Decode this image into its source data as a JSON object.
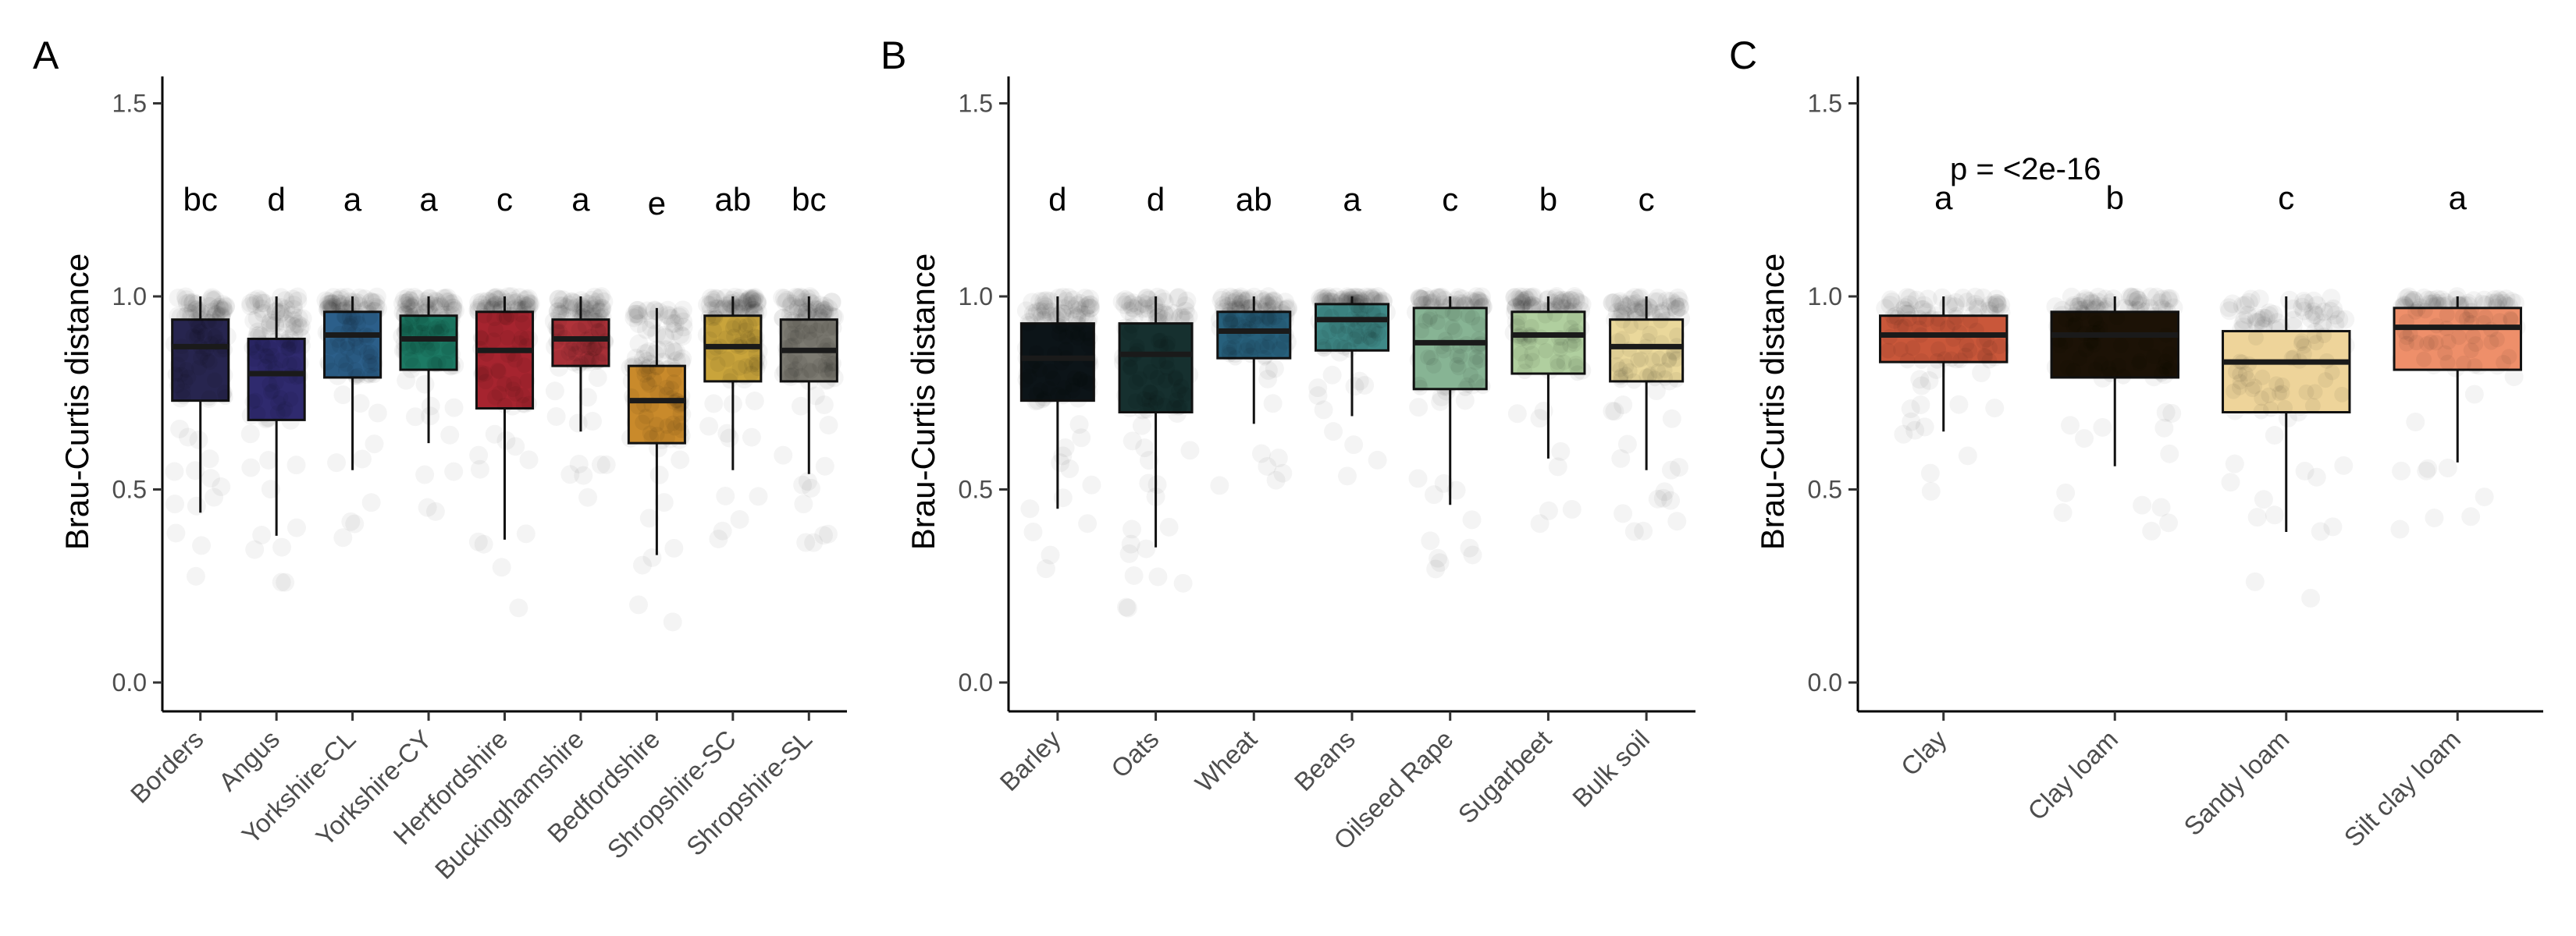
{
  "chart_data": [
    {
      "panel": "A",
      "type": "box",
      "ylabel": "Brau-Curtis distance",
      "ylim": [
        -0.05,
        1.6
      ],
      "yticks": [
        "0.0",
        "0.5",
        "1.0",
        "1.5"
      ],
      "grid": false,
      "categories": [
        "Borders",
        "Angus",
        "Yorkshire-CL",
        "Yorkshire-CY",
        "Hertfordshire",
        "Buckinghamshire",
        "Bedfordshire",
        "Shropshire-SC",
        "Shropshire-SL"
      ],
      "boxes": [
        {
          "min": 0.44,
          "q1": 0.73,
          "median": 0.87,
          "q3": 0.94,
          "max": 1.0,
          "color": "#27254f"
        },
        {
          "min": 0.38,
          "q1": 0.68,
          "median": 0.8,
          "q3": 0.89,
          "max": 1.0,
          "color": "#2f2a6e"
        },
        {
          "min": 0.55,
          "q1": 0.79,
          "median": 0.9,
          "q3": 0.96,
          "max": 1.0,
          "color": "#2c5f8a"
        },
        {
          "min": 0.62,
          "q1": 0.81,
          "median": 0.89,
          "q3": 0.95,
          "max": 1.0,
          "color": "#1c7a64"
        },
        {
          "min": 0.37,
          "q1": 0.71,
          "median": 0.86,
          "q3": 0.96,
          "max": 1.0,
          "color": "#a6242f"
        },
        {
          "min": 0.65,
          "q1": 0.82,
          "median": 0.89,
          "q3": 0.94,
          "max": 1.0,
          "color": "#b0333a"
        },
        {
          "min": 0.33,
          "q1": 0.62,
          "median": 0.73,
          "q3": 0.82,
          "max": 0.97,
          "color": "#c98a2b"
        },
        {
          "min": 0.55,
          "q1": 0.78,
          "median": 0.87,
          "q3": 0.95,
          "max": 1.0,
          "color": "#c9a43b"
        },
        {
          "min": 0.54,
          "q1": 0.78,
          "median": 0.86,
          "q3": 0.94,
          "max": 1.0,
          "color": "#7d7b72"
        }
      ],
      "letters": [
        "bc",
        "d",
        "a",
        "a",
        "c",
        "a",
        "e",
        "ab",
        "bc"
      ],
      "pvalue": ""
    },
    {
      "panel": "B",
      "type": "box",
      "ylabel": "Brau-Curtis distance",
      "ylim": [
        -0.05,
        1.6
      ],
      "yticks": [
        "0.0",
        "0.5",
        "1.0",
        "1.5"
      ],
      "grid": false,
      "categories": [
        "Barley",
        "Oats",
        "Wheat",
        "Beans",
        "Oilseed Rape",
        "Sugarbeet",
        "Bulk soil"
      ],
      "boxes": [
        {
          "min": 0.45,
          "q1": 0.73,
          "median": 0.84,
          "q3": 0.93,
          "max": 1.0,
          "color": "#0c1418"
        },
        {
          "min": 0.35,
          "q1": 0.7,
          "median": 0.85,
          "q3": 0.93,
          "max": 1.0,
          "color": "#16302f"
        },
        {
          "min": 0.67,
          "q1": 0.84,
          "median": 0.91,
          "q3": 0.96,
          "max": 1.0,
          "color": "#27607c"
        },
        {
          "min": 0.69,
          "q1": 0.86,
          "median": 0.94,
          "q3": 0.98,
          "max": 1.0,
          "color": "#3f8987"
        },
        {
          "min": 0.46,
          "q1": 0.76,
          "median": 0.88,
          "q3": 0.97,
          "max": 1.0,
          "color": "#87b494"
        },
        {
          "min": 0.58,
          "q1": 0.8,
          "median": 0.9,
          "q3": 0.96,
          "max": 1.0,
          "color": "#b0cf9f"
        },
        {
          "min": 0.55,
          "q1": 0.78,
          "median": 0.87,
          "q3": 0.94,
          "max": 1.0,
          "color": "#ead89b"
        }
      ],
      "letters": [
        "d",
        "d",
        "ab",
        "a",
        "c",
        "b",
        "c"
      ],
      "pvalue": ""
    },
    {
      "panel": "C",
      "type": "box",
      "ylabel": "Brau-Curtis distance",
      "ylim": [
        -0.05,
        1.6
      ],
      "yticks": [
        "0.0",
        "0.5",
        "1.0",
        "1.5"
      ],
      "grid": false,
      "categories": [
        "Clay",
        "Clay loam",
        "Sandy loam",
        "Silt clay loam"
      ],
      "boxes": [
        {
          "min": 0.65,
          "q1": 0.83,
          "median": 0.9,
          "q3": 0.95,
          "max": 1.0,
          "color": "#c9573a"
        },
        {
          "min": 0.56,
          "q1": 0.79,
          "median": 0.9,
          "q3": 0.96,
          "max": 1.0,
          "color": "#1c1206"
        },
        {
          "min": 0.39,
          "q1": 0.7,
          "median": 0.83,
          "q3": 0.91,
          "max": 1.0,
          "color": "#eed49a"
        },
        {
          "min": 0.57,
          "q1": 0.81,
          "median": 0.92,
          "q3": 0.97,
          "max": 1.0,
          "color": "#ee8f6a"
        }
      ],
      "letters": [
        "a",
        "b",
        "c",
        "a"
      ],
      "pvalue": "p = <2e-16"
    }
  ]
}
